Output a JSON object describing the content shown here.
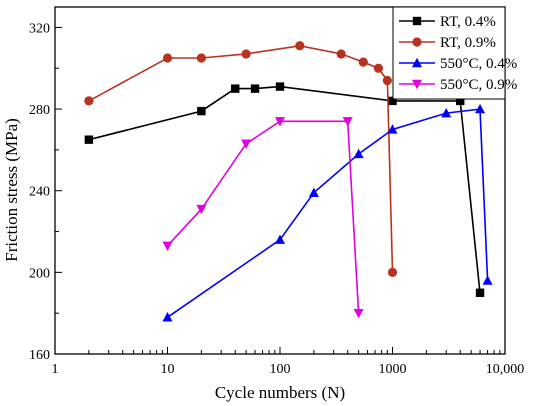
{
  "chart_data": {
    "type": "line",
    "xlabel": "Cycle numbers (N)",
    "ylabel": "Friction stress (MPa)",
    "xscale": "log",
    "xlim": [
      1,
      10000
    ],
    "ylim": [
      160,
      330
    ],
    "x_ticks": [
      1,
      10,
      100,
      1000,
      10000
    ],
    "x_tick_labels": [
      "1",
      "10",
      "100",
      "1000",
      "10,000"
    ],
    "y_ticks": [
      160,
      200,
      240,
      280,
      320
    ],
    "y_tick_labels": [
      "160",
      "200",
      "240",
      "280",
      "320"
    ],
    "grid": false,
    "legend_position": "top-right",
    "series": [
      {
        "name": "RT, 0.4%",
        "color": "#000000",
        "marker": "square",
        "x": [
          2,
          20,
          40,
          60,
          100,
          1000,
          4000,
          6000
        ],
        "y": [
          265,
          279,
          290,
          290,
          291,
          284,
          284,
          190
        ]
      },
      {
        "name": "RT, 0.9%",
        "color": "#b8331f",
        "marker": "circle",
        "x": [
          2,
          10,
          20,
          50,
          150,
          350,
          550,
          750,
          900,
          1000
        ],
        "y": [
          284,
          305,
          305,
          307,
          311,
          307,
          303,
          300,
          294,
          200
        ]
      },
      {
        "name": "550°C, 0.4%",
        "color": "#0000ff",
        "marker": "triangle-up",
        "x": [
          10,
          100,
          200,
          500,
          1000,
          3000,
          6000,
          7000
        ],
        "y": [
          178,
          216,
          239,
          258,
          270,
          278,
          280,
          196
        ]
      },
      {
        "name": "550°C, 0.9%",
        "color": "#e000e0",
        "marker": "triangle-down",
        "x": [
          10,
          20,
          50,
          100,
          400,
          500
        ],
        "y": [
          213,
          231,
          263,
          274,
          274,
          180
        ]
      }
    ]
  }
}
